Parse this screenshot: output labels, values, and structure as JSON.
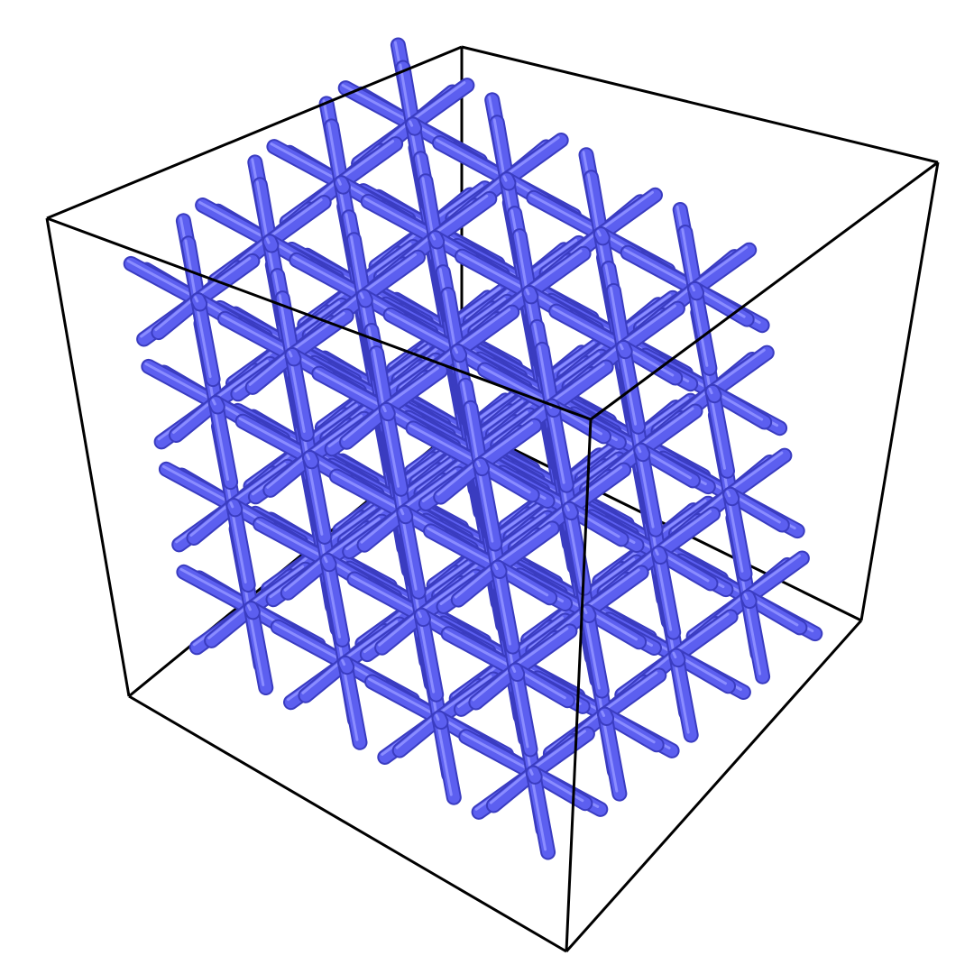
{
  "scene": {
    "subject": "lattice-structure",
    "object_type": "periodic-strut-lattice",
    "strut_color": "#5c5ff0",
    "strut_shadow_color": "#3a3cc0",
    "strut_highlight_color": "#8a8cff",
    "background_color": "#ffffff",
    "bounding_box_color": "#000000",
    "cells_per_axis": 4,
    "rods_per_node": 14
  }
}
